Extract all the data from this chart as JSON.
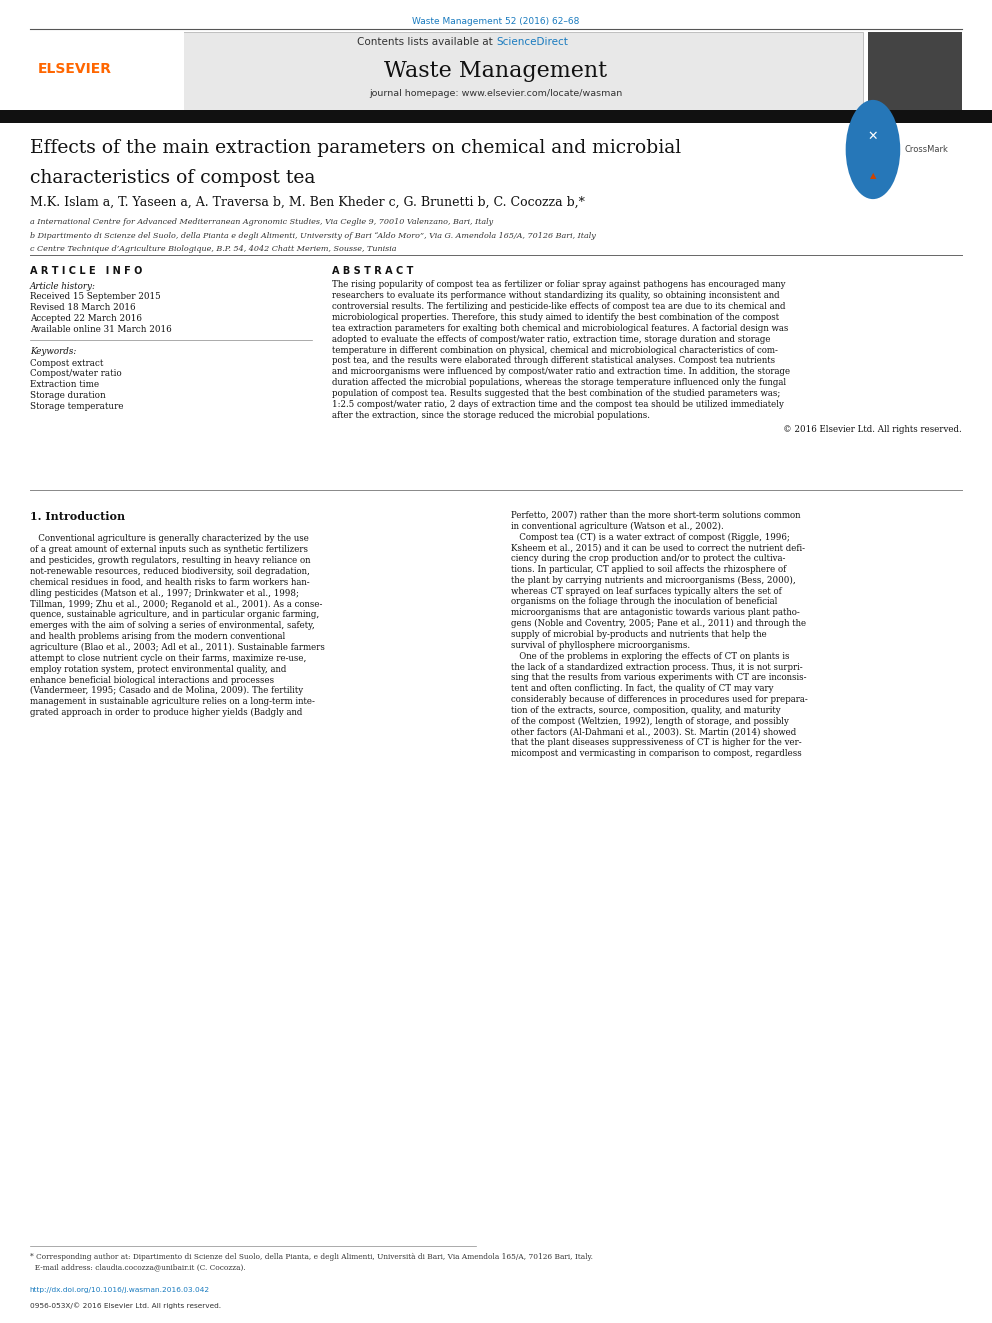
{
  "fig_width": 9.92,
  "fig_height": 13.23,
  "bg_color": "#ffffff",
  "journal_ref": "Waste Management 52 (2016) 62–68",
  "journal_ref_color": "#1a7bbf",
  "header_bg": "#e8e8e8",
  "header_text": "Contents lists available at ",
  "sciencedirect": "ScienceDirect",
  "sciencedirect_color": "#1a7bbf",
  "journal_name": "Waste Management",
  "journal_homepage": "journal homepage: www.elsevier.com/locate/wasman",
  "elsevier_color": "#ff6600",
  "title_line1": "Effects of the main extraction parameters on chemical and microbial",
  "title_line2": "characteristics of compost tea",
  "authors": "M.K. Islam a, T. Yaseen a, A. Traversa b, M. Ben Kheder c, G. Brunetti b, C. Cocozza b,*",
  "affil_a": "a International Centre for Advanced Mediterranean Agronomic Studies, Via Ceglie 9, 70010 Valenzano, Bari, Italy",
  "affil_b": "b Dipartimento di Scienze del Suolo, della Pianta e degli Alimenti, University of Bari “Aldo Moro”, Via G. Amendola 165/A, 70126 Bari, Italy",
  "affil_c": "c Centre Technique d’Agriculture Biologique, B.P. 54, 4042 Chatt Meriem, Sousse, Tunisia",
  "article_info_header": "A R T I C L E   I N F O",
  "abstract_header": "A B S T R A C T",
  "article_history_label": "Article history:",
  "received": "Received 15 September 2015",
  "revised": "Revised 18 March 2016",
  "accepted": "Accepted 22 March 2016",
  "available": "Available online 31 March 2016",
  "keywords_label": "Keywords:",
  "keywords": [
    "Compost extract",
    "Compost/water ratio",
    "Extraction time",
    "Storage duration",
    "Storage temperature"
  ],
  "abstract_lines": [
    "The rising popularity of compost tea as fertilizer or foliar spray against pathogens has encouraged many",
    "researchers to evaluate its performance without standardizing its quality, so obtaining inconsistent and",
    "controversial results. The fertilizing and pesticide-like effects of compost tea are due to its chemical and",
    "microbiological properties. Therefore, this study aimed to identify the best combination of the compost",
    "tea extraction parameters for exalting both chemical and microbiological features. A factorial design was",
    "adopted to evaluate the effects of compost/water ratio, extraction time, storage duration and storage",
    "temperature in different combination on physical, chemical and microbiological characteristics of com-",
    "post tea, and the results were elaborated through different statistical analyses. Compost tea nutrients",
    "and microorganisms were influenced by compost/water ratio and extraction time. In addition, the storage",
    "duration affected the microbial populations, whereas the storage temperature influenced only the fungal",
    "population of compost tea. Results suggested that the best combination of the studied parameters was;",
    "1:2.5 compost/water ratio, 2 days of extraction time and the compost tea should be utilized immediately",
    "after the extraction, since the storage reduced the microbial populations."
  ],
  "copyright": "© 2016 Elsevier Ltd. All rights reserved.",
  "intro_header": "1. Introduction",
  "intro_left_lines": [
    "   Conventional agriculture is generally characterized by the use",
    "of a great amount of external inputs such as synthetic fertilizers",
    "and pesticides, growth regulators, resulting in heavy reliance on",
    "not-renewable resources, reduced biodiversity, soil degradation,",
    "chemical residues in food, and health risks to farm workers han-",
    "dling pesticides (Matson et al., 1997; Drinkwater et al., 1998;",
    "Tillman, 1999; Zhu et al., 2000; Reganold et al., 2001). As a conse-",
    "quence, sustainable agriculture, and in particular organic farming,",
    "emerges with the aim of solving a series of environmental, safety,",
    "and health problems arising from the modern conventional",
    "agriculture (Blao et al., 2003; Adl et al., 2011). Sustainable farmers",
    "attempt to close nutrient cycle on their farms, maximize re-use,",
    "employ rotation system, protect environmental quality, and",
    "enhance beneficial biological interactions and processes",
    "(Vandermeer, 1995; Casado and de Molina, 2009). The fertility",
    "management in sustainable agriculture relies on a long-term inte-",
    "grated approach in order to produce higher yields (Badgly and"
  ],
  "intro_right_lines": [
    "Perfetto, 2007) rather than the more short-term solutions common",
    "in conventional agriculture (Watson et al., 2002).",
    "   Compost tea (CT) is a water extract of compost (Riggle, 1996;",
    "Ksheem et al., 2015) and it can be used to correct the nutrient defi-",
    "ciency during the crop production and/or to protect the cultiva-",
    "tions. In particular, CT applied to soil affects the rhizosphere of",
    "the plant by carrying nutrients and microorganisms (Bess, 2000),",
    "whereas CT sprayed on leaf surfaces typically alters the set of",
    "organisms on the foliage through the inoculation of beneficial",
    "microorganisms that are antagonistic towards various plant patho-",
    "gens (Noble and Coventry, 2005; Pane et al., 2011) and through the",
    "supply of microbial by-products and nutrients that help the",
    "survival of phyllosphere microorganisms.",
    "   One of the problems in exploring the effects of CT on plants is",
    "the lack of a standardized extraction process. Thus, it is not surpri-",
    "sing that the results from various experiments with CT are inconsis-",
    "tent and often conflicting. In fact, the quality of CT may vary",
    "considerably because of differences in procedures used for prepara-",
    "tion of the extracts, source, composition, quality, and maturity",
    "of the compost (Weltzien, 1992), length of storage, and possibly",
    "other factors (Al-Dahmani et al., 2003). St. Martin (2014) showed",
    "that the plant diseases suppressiveness of CT is higher for the ver-",
    "micompost and vermicasting in comparison to compost, regardless"
  ],
  "footer_line1": "* Corresponding author at: Dipartimento di Scienze del Suolo, della Pianta, e degli Alimenti, Università di Bari, Via Amendola 165/A, 70126 Bari, Italy.",
  "footer_line2": "  E-mail address: claudia.cocozza@unibair.it (C. Cocozza).",
  "doi_text": "http://dx.doi.org/10.1016/j.wasman.2016.03.042",
  "doi_color": "#1a7bbf",
  "issn_text": "0956-053X/© 2016 Elsevier Ltd. All rights reserved.",
  "crossmark_text": "CrossMark"
}
